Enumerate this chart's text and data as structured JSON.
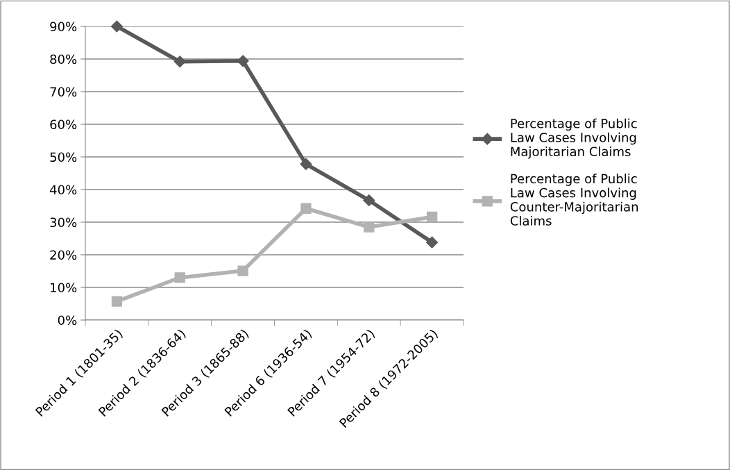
{
  "chart_data": {
    "type": "line",
    "categories": [
      "Period 1 (1801-35)",
      "Period 2 (1836-64)",
      "Period 3 (1865-88)",
      "Period 6 (1936-54)",
      "Period 7 (1954-72)",
      "Period 8 (1972-2005)"
    ],
    "series": [
      {
        "name": "Percentage of Public Law Cases Involving Majoritarian Claims",
        "color": "#595959",
        "marker": "diamond",
        "values": [
          90,
          79.2,
          79.4,
          47.8,
          36.7,
          23.8
        ]
      },
      {
        "name": "Percentage of Public Law Cases Involving Counter-Majoritarian Claims",
        "color": "#b2b2b2",
        "marker": "square",
        "values": [
          5.7,
          13.0,
          15.1,
          34.2,
          28.5,
          31.6
        ]
      }
    ],
    "ylim": [
      0,
      90
    ],
    "yticks": [
      {
        "value": 0,
        "label": "0%"
      },
      {
        "value": 10,
        "label": "10%"
      },
      {
        "value": 20,
        "label": "20%"
      },
      {
        "value": 30,
        "label": "30%"
      },
      {
        "value": 40,
        "label": "40%"
      },
      {
        "value": 50,
        "label": "50%"
      },
      {
        "value": 60,
        "label": "60%"
      },
      {
        "value": 70,
        "label": "70%"
      },
      {
        "value": 80,
        "label": "80%"
      },
      {
        "value": 90,
        "label": "90%"
      }
    ],
    "grid": "y",
    "legend": "right",
    "line_style": "solid"
  }
}
